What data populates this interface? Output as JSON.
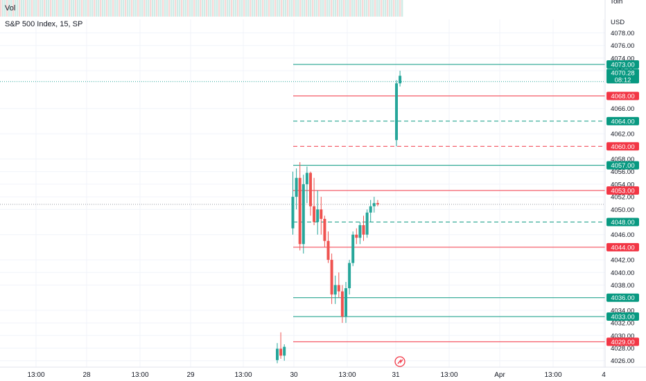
{
  "legend": {
    "volume_label": "Vol",
    "symbol_label": "S&P 500 Index, 15, SP"
  },
  "top_right_partial": "Tolh",
  "price_axis": {
    "currency": "USD",
    "ticks": [
      "4078.00",
      "4076.00",
      "4074.00",
      "4072.00",
      "4066.00",
      "4062.00",
      "4058.00",
      "4056.00",
      "4054.00",
      "4052.00",
      "4050.00",
      "4046.00",
      "4042.00",
      "4040.00",
      "4038.00",
      "4034.00",
      "4032.00",
      "4030.00",
      "4028.00",
      "4026.00"
    ],
    "current_price": "4070.28",
    "countdown": "08:12"
  },
  "time_axis": {
    "ticks": [
      "13:00",
      "28",
      "13:00",
      "29",
      "13:00",
      "30",
      "13:00",
      "31",
      "13:00",
      "Apr",
      "13:00",
      "4"
    ]
  },
  "colors": {
    "up": "#26a69a",
    "down": "#ef5350",
    "grid": "#f0f3fa",
    "axis_text": "#131722",
    "teal_label": "#089981",
    "red_label": "#f23645"
  },
  "levels": [
    {
      "price": 4073,
      "label": "4073.00",
      "color": "teal",
      "style": "solid",
      "start": "30"
    },
    {
      "price": 4068,
      "label": "4068.00",
      "color": "red",
      "style": "solid",
      "start": "30"
    },
    {
      "price": 4064,
      "label": "4064.00",
      "color": "teal",
      "style": "dashed",
      "start": "30"
    },
    {
      "price": 4060,
      "label": "4060.00",
      "color": "red",
      "style": "dashed",
      "start": "30"
    },
    {
      "price": 4057,
      "label": "4057.00",
      "color": "teal",
      "style": "solid",
      "start": "30"
    },
    {
      "price": 4053,
      "label": "4053.00",
      "color": "red",
      "style": "solid",
      "start": "30"
    },
    {
      "price": 4048,
      "label": "4048.00",
      "color": "teal",
      "style": "dashed",
      "start": "30"
    },
    {
      "price": 4044,
      "label": "4044.00",
      "color": "red",
      "style": "solid",
      "start": "30"
    },
    {
      "price": 4036,
      "label": "4036.00",
      "color": "teal",
      "style": "solid",
      "start": "30"
    },
    {
      "price": 4033,
      "label": "4033.00",
      "color": "teal",
      "style": "solid",
      "start": "30"
    },
    {
      "price": 4029,
      "label": "4029.00",
      "color": "red",
      "style": "solid",
      "start": "30"
    }
  ],
  "chart_data": {
    "type": "candlestick",
    "series": [
      {
        "group": "Mar 29 close",
        "o": 4026.1,
        "h": 4028.8,
        "l": 4025.6,
        "c": 4027.9
      },
      {
        "group": "Mar 29 close",
        "o": 4027.9,
        "h": 4030.5,
        "l": 4026.3,
        "c": 4026.8
      },
      {
        "group": "Mar 29 close",
        "o": 4026.8,
        "h": 4028.6,
        "l": 4026.0,
        "c": 4028.2
      },
      {
        "group": "Mar 30",
        "o": 4047.0,
        "h": 4056.0,
        "l": 4046.0,
        "c": 4052.0
      },
      {
        "group": "Mar 30",
        "o": 4052.0,
        "h": 4056.5,
        "l": 4050.0,
        "c": 4055.0
      },
      {
        "group": "Mar 30",
        "o": 4055.0,
        "h": 4057.5,
        "l": 4043.5,
        "c": 4044.5
      },
      {
        "group": "Mar 30",
        "o": 4044.5,
        "h": 4055.5,
        "l": 4043.0,
        "c": 4054.0
      },
      {
        "group": "Mar 30",
        "o": 4054.0,
        "h": 4056.8,
        "l": 4051.0,
        "c": 4055.8
      },
      {
        "group": "Mar 30",
        "o": 4055.8,
        "h": 4056.0,
        "l": 4049.0,
        "c": 4050.5
      },
      {
        "group": "Mar 30",
        "o": 4050.5,
        "h": 4055.0,
        "l": 4047.5,
        "c": 4048.0
      },
      {
        "group": "Mar 30",
        "o": 4048.0,
        "h": 4053.0,
        "l": 4046.0,
        "c": 4050.0
      },
      {
        "group": "Mar 30",
        "o": 4050.0,
        "h": 4052.0,
        "l": 4046.0,
        "c": 4048.5
      },
      {
        "group": "Mar 30",
        "o": 4048.5,
        "h": 4049.0,
        "l": 4044.0,
        "c": 4045.0
      },
      {
        "group": "Mar 30",
        "o": 4045.0,
        "h": 4046.5,
        "l": 4041.5,
        "c": 4042.0
      },
      {
        "group": "Mar 30",
        "o": 4042.0,
        "h": 4043.0,
        "l": 4035.0,
        "c": 4036.5
      },
      {
        "group": "Mar 30",
        "o": 4036.5,
        "h": 4039.5,
        "l": 4035.0,
        "c": 4038.0
      },
      {
        "group": "Mar 30",
        "o": 4038.0,
        "h": 4040.0,
        "l": 4036.0,
        "c": 4037.0
      },
      {
        "group": "Mar 30",
        "o": 4037.0,
        "h": 4038.0,
        "l": 4032.0,
        "c": 4033.0
      },
      {
        "group": "Mar 30",
        "o": 4033.0,
        "h": 4038.5,
        "l": 4032.0,
        "c": 4037.5
      },
      {
        "group": "Mar 30",
        "o": 4037.5,
        "h": 4042.0,
        "l": 4036.5,
        "c": 4041.5
      },
      {
        "group": "Mar 30",
        "o": 4041.5,
        "h": 4046.5,
        "l": 4041.0,
        "c": 4046.0
      },
      {
        "group": "Mar 30",
        "o": 4046.0,
        "h": 4047.0,
        "l": 4044.5,
        "c": 4045.5
      },
      {
        "group": "Mar 30",
        "o": 4045.5,
        "h": 4048.0,
        "l": 4044.5,
        "c": 4047.5
      },
      {
        "group": "Mar 30",
        "o": 4047.5,
        "h": 4049.0,
        "l": 4045.0,
        "c": 4046.0
      },
      {
        "group": "Mar 30",
        "o": 4046.0,
        "h": 4050.0,
        "l": 4045.5,
        "c": 4049.5
      },
      {
        "group": "Mar 30",
        "o": 4049.5,
        "h": 4051.5,
        "l": 4048.0,
        "c": 4050.5
      },
      {
        "group": "Mar 30",
        "o": 4050.5,
        "h": 4052.0,
        "l": 4049.5,
        "c": 4051.0
      },
      {
        "group": "Mar 30",
        "o": 4051.0,
        "h": 4051.5,
        "l": 4050.5,
        "c": 4050.8
      },
      {
        "group": "Mar 31",
        "o": 4061.0,
        "h": 4070.5,
        "l": 4060.0,
        "c": 4070.0
      },
      {
        "group": "Mar 31",
        "o": 4070.0,
        "h": 4072.0,
        "l": 4069.5,
        "c": 4071.2
      }
    ]
  }
}
